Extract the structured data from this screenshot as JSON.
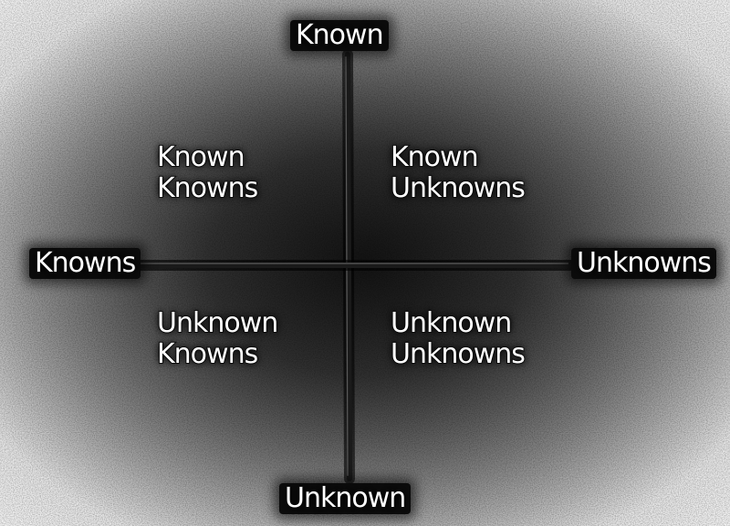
{
  "axis": {
    "top": "Known",
    "bottom": "Unknown",
    "left": "Knowns",
    "right": "Unknowns"
  },
  "quadrants": {
    "top_left": [
      "Known",
      "Knowns"
    ],
    "top_right": [
      "Known",
      "Unknowns"
    ],
    "bottom_left": [
      "Unknown",
      "Knowns"
    ],
    "bottom_right": [
      "Unknown",
      "Unknowns"
    ]
  },
  "colors": {
    "axis_line": "#1a1a1a",
    "text_fill": "#ffffff",
    "text_outline": "#161616"
  }
}
